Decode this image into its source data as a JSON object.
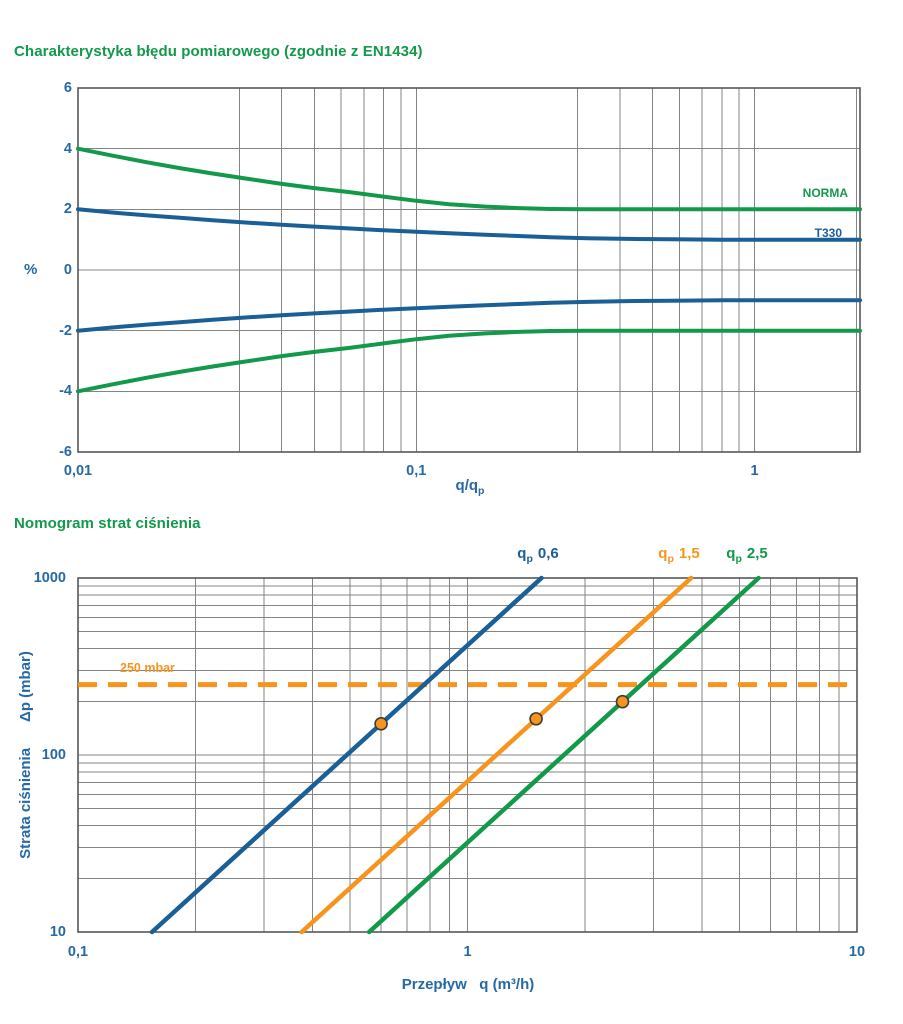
{
  "colors": {
    "background": "#ffffff",
    "green": "#12994a",
    "blue_line": "#1a5f96",
    "blue_text": "#2569a6",
    "orange": "#f7941d",
    "grid": "#848484",
    "border": "#55565a",
    "dot_stroke": "#3d3d3d"
  },
  "chart_data": [
    {
      "type": "line",
      "title": "Charakterystyka błędu pomiarowego (zgodnie z EN1434)",
      "x_axis": {
        "scale": "log",
        "min": 0.01,
        "max": 2.05,
        "label_main": "q/q",
        "label_sub": "p",
        "ticks": [
          {
            "v": 0.01,
            "label": "0,01"
          },
          {
            "v": 0.1,
            "label": "0,1"
          },
          {
            "v": 1,
            "label": "1"
          }
        ],
        "gridlines": [
          0.03,
          0.04,
          0.05,
          0.06,
          0.07,
          0.08,
          0.09,
          0.1,
          0.3,
          0.4,
          0.5,
          0.6,
          0.7,
          0.8,
          0.9,
          1,
          2
        ]
      },
      "y_axis": {
        "scale": "linear",
        "min": -6,
        "max": 6,
        "label": "%",
        "ticks": [
          {
            "v": 6,
            "label": "6"
          },
          {
            "v": 4,
            "label": "4"
          },
          {
            "v": 2,
            "label": "2"
          },
          {
            "v": 0,
            "label": "0"
          },
          {
            "v": -2,
            "label": "-2"
          },
          {
            "v": -4,
            "label": "-4"
          },
          {
            "v": -6,
            "label": "-6"
          }
        ],
        "gridlines": [
          4,
          2,
          0,
          -2,
          -4
        ]
      },
      "series": [
        {
          "name": "NORMA",
          "color_key": "green",
          "points_upper": [
            [
              0.01,
              4.0
            ],
            [
              0.0125,
              3.78
            ],
            [
              0.016,
              3.55
            ],
            [
              0.02,
              3.36
            ],
            [
              0.025,
              3.18
            ],
            [
              0.032,
              3.0
            ],
            [
              0.04,
              2.84
            ],
            [
              0.05,
              2.7
            ],
            [
              0.063,
              2.57
            ],
            [
              0.08,
              2.42
            ],
            [
              0.1,
              2.28
            ],
            [
              0.125,
              2.17
            ],
            [
              0.16,
              2.09
            ],
            [
              0.2,
              2.04
            ],
            [
              0.25,
              2.01
            ],
            [
              0.32,
              2.0
            ],
            [
              0.5,
              2.0
            ],
            [
              1.0,
              2.0
            ],
            [
              2.05,
              2.0
            ]
          ],
          "points_lower": [
            [
              0.01,
              -4.0
            ],
            [
              0.0125,
              -3.78
            ],
            [
              0.016,
              -3.55
            ],
            [
              0.02,
              -3.36
            ],
            [
              0.025,
              -3.18
            ],
            [
              0.032,
              -3.0
            ],
            [
              0.04,
              -2.84
            ],
            [
              0.05,
              -2.7
            ],
            [
              0.063,
              -2.57
            ],
            [
              0.08,
              -2.42
            ],
            [
              0.1,
              -2.28
            ],
            [
              0.125,
              -2.17
            ],
            [
              0.16,
              -2.09
            ],
            [
              0.2,
              -2.04
            ],
            [
              0.25,
              -2.01
            ],
            [
              0.32,
              -2.0
            ],
            [
              0.5,
              -2.0
            ],
            [
              1.0,
              -2.0
            ],
            [
              2.05,
              -2.0
            ]
          ]
        },
        {
          "name": "T330",
          "color_key": "blue_line",
          "points_upper": [
            [
              0.01,
              2.0
            ],
            [
              0.0125,
              1.9
            ],
            [
              0.016,
              1.8
            ],
            [
              0.02,
              1.72
            ],
            [
              0.025,
              1.64
            ],
            [
              0.032,
              1.56
            ],
            [
              0.04,
              1.49
            ],
            [
              0.05,
              1.43
            ],
            [
              0.063,
              1.37
            ],
            [
              0.08,
              1.31
            ],
            [
              0.1,
              1.26
            ],
            [
              0.125,
              1.21
            ],
            [
              0.16,
              1.16
            ],
            [
              0.2,
              1.12
            ],
            [
              0.25,
              1.08
            ],
            [
              0.32,
              1.05
            ],
            [
              0.4,
              1.03
            ],
            [
              0.5,
              1.02
            ],
            [
              0.63,
              1.01
            ],
            [
              0.8,
              1.0
            ],
            [
              1.0,
              1.0
            ],
            [
              2.05,
              1.0
            ]
          ],
          "points_lower": [
            [
              0.01,
              -2.0
            ],
            [
              0.0125,
              -1.9
            ],
            [
              0.016,
              -1.8
            ],
            [
              0.02,
              -1.72
            ],
            [
              0.025,
              -1.64
            ],
            [
              0.032,
              -1.56
            ],
            [
              0.04,
              -1.49
            ],
            [
              0.05,
              -1.43
            ],
            [
              0.063,
              -1.37
            ],
            [
              0.08,
              -1.31
            ],
            [
              0.1,
              -1.26
            ],
            [
              0.125,
              -1.21
            ],
            [
              0.16,
              -1.16
            ],
            [
              0.2,
              -1.12
            ],
            [
              0.25,
              -1.08
            ],
            [
              0.32,
              -1.05
            ],
            [
              0.4,
              -1.03
            ],
            [
              0.5,
              -1.02
            ],
            [
              0.63,
              -1.01
            ],
            [
              0.8,
              -1.0
            ],
            [
              1.0,
              -1.0
            ],
            [
              2.05,
              -1.0
            ]
          ]
        }
      ]
    },
    {
      "type": "line",
      "title": "Nomogram strat ciśnienia",
      "x_axis": {
        "scale": "log",
        "min": 0.1,
        "max": 10,
        "label": "Przepływ   q (m³/h)",
        "ticks": [
          {
            "v": 0.1,
            "label": "0,1"
          },
          {
            "v": 1,
            "label": "1"
          },
          {
            "v": 10,
            "label": "10"
          }
        ],
        "gridlines": [
          0.2,
          0.3,
          0.4,
          0.5,
          0.6,
          0.7,
          0.8,
          0.9,
          1,
          2,
          3,
          4,
          5,
          6,
          7,
          8,
          9
        ]
      },
      "y_axis": {
        "scale": "log",
        "min": 10,
        "max": 1000,
        "label_1": "Strata ciśnienia",
        "label_2": "Δp (mbar)",
        "ticks": [
          {
            "v": 1000,
            "label": "1000"
          },
          {
            "v": 100,
            "label": "100"
          },
          {
            "v": 10,
            "label": "10"
          }
        ],
        "gridlines": [
          900,
          800,
          700,
          600,
          500,
          400,
          300,
          200,
          100,
          90,
          80,
          70,
          60,
          50,
          40,
          30,
          20
        ]
      },
      "series": [
        {
          "name": "qp 0,6",
          "label_q": "q",
          "label_sub": "p",
          "label_val": "0,6",
          "color_key": "blue_line",
          "line": [
            [
              0.1549,
              10
            ],
            [
              1.549,
              1000
            ]
          ],
          "dot": {
            "q": 0.6,
            "dp": 150
          }
        },
        {
          "name": "qp 1,5",
          "label_q": "q",
          "label_sub": "p",
          "label_val": "1,5",
          "color_key": "orange",
          "line": [
            [
              0.3752,
              10
            ],
            [
              3.752,
              1000
            ]
          ],
          "dot": {
            "q": 1.5,
            "dp": 160
          }
        },
        {
          "name": "qp 2,5",
          "label_q": "q",
          "label_sub": "p",
          "label_val": "2,5",
          "color_key": "green",
          "line": [
            [
              0.559,
              10
            ],
            [
              5.59,
              1000
            ]
          ],
          "dot": {
            "q": 2.5,
            "dp": 200
          }
        }
      ],
      "reference_line": {
        "value": 250,
        "label": "250 mbar",
        "style": "dashed",
        "color_key": "orange"
      }
    }
  ]
}
